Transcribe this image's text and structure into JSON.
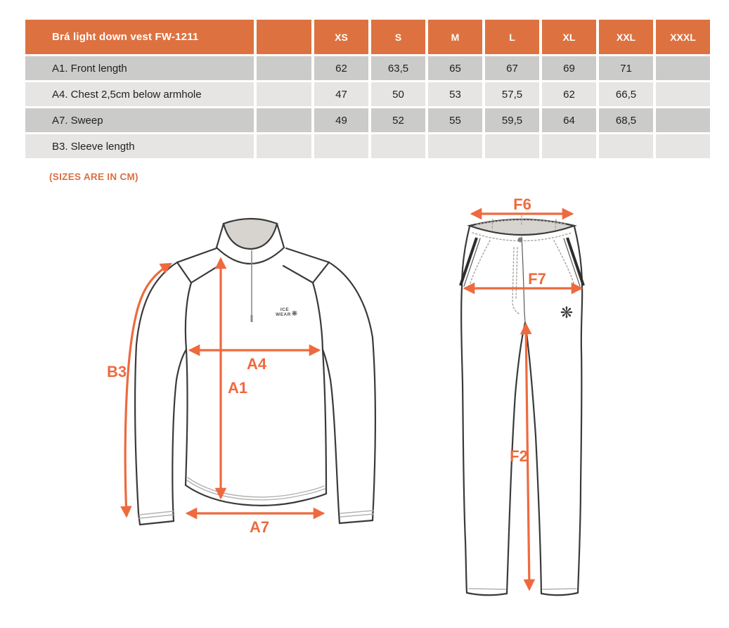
{
  "colors": {
    "header_orange": "#dd7240",
    "arrow_orange": "#ee6a3e",
    "note_orange": "#dc6f3f",
    "row_dark": "#cbcbca",
    "row_light": "#e6e5e3"
  },
  "size_chart": {
    "title": "Brá light down vest FW-1211",
    "size_headers": [
      "XS",
      "S",
      "M",
      "L",
      "XL",
      "XXL",
      "XXXL"
    ],
    "rows": [
      {
        "label": "A1. Front length",
        "values": [
          "62",
          "63,5",
          "65",
          "67",
          "69",
          "71",
          ""
        ]
      },
      {
        "label": "A4. Chest 2,5cm below armhole",
        "values": [
          "47",
          "50",
          "53",
          "57,5",
          "62",
          "66,5",
          ""
        ]
      },
      {
        "label": "A7. Sweep",
        "values": [
          "49",
          "52",
          "55",
          "59,5",
          "64",
          "68,5",
          ""
        ]
      },
      {
        "label": "B3. Sleeve length",
        "values": [
          "",
          "",
          "",
          "",
          "",
          "",
          ""
        ]
      }
    ],
    "note": "(SIZES ARE IN CM)"
  },
  "diagrams": {
    "shirt": {
      "measure_labels": {
        "b3": "B3",
        "a4": "A4",
        "a1": "A1",
        "a7": "A7"
      },
      "logo_line1": "ICE",
      "logo_line2": "WEAR",
      "logo_icon": "❋"
    },
    "pants": {
      "measure_labels": {
        "f6": "F6",
        "f7": "F7",
        "f2": "F2"
      },
      "logo_icon": "❋"
    }
  }
}
